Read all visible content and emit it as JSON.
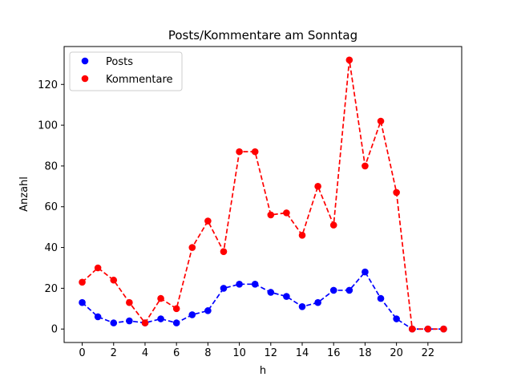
{
  "chart_data": {
    "type": "line",
    "title": "Posts/Kommentare am Sonntag",
    "xlabel": "h",
    "ylabel": "Anzahl",
    "x": [
      0,
      1,
      2,
      3,
      4,
      5,
      6,
      7,
      8,
      9,
      10,
      11,
      12,
      13,
      14,
      15,
      16,
      17,
      18,
      19,
      20,
      21,
      22,
      23
    ],
    "xlim": [
      -1.15,
      24.15
    ],
    "ylim": [
      -6.6,
      138.6
    ],
    "xticks": [
      0,
      2,
      4,
      6,
      8,
      10,
      12,
      14,
      16,
      18,
      20,
      22
    ],
    "yticks": [
      0,
      20,
      40,
      60,
      80,
      100,
      120
    ],
    "grid": false,
    "legend_position": "top-left",
    "series": [
      {
        "name": "Posts",
        "color": "#0000ff",
        "values": [
          13,
          6,
          3,
          4,
          3,
          5,
          3,
          7,
          9,
          20,
          22,
          22,
          18,
          16,
          11,
          13,
          19,
          19,
          28,
          15,
          5,
          0,
          0,
          0
        ]
      },
      {
        "name": "Kommentare",
        "color": "#ff0000",
        "values": [
          23,
          30,
          24,
          13,
          3,
          15,
          10,
          40,
          53,
          38,
          87,
          87,
          56,
          57,
          46,
          70,
          51,
          132,
          80,
          102,
          67,
          0,
          0,
          0
        ]
      }
    ]
  }
}
